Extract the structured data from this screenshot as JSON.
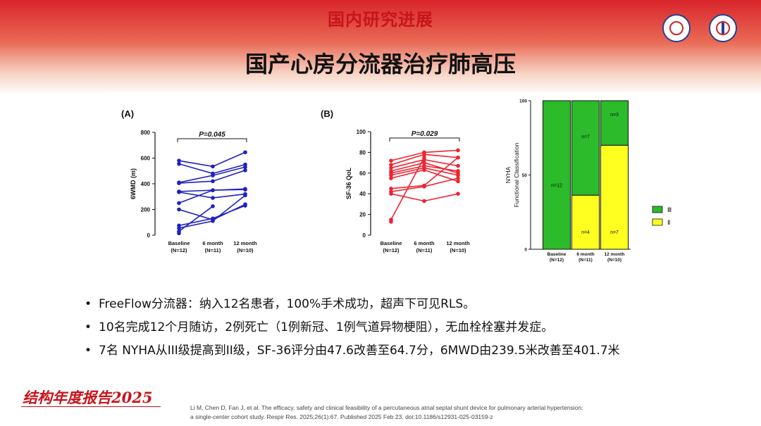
{
  "header": {
    "section_title": "国内研究进展",
    "slide_title": "国产心房分流器治疗肺高压"
  },
  "colors": {
    "accent_red": "#c8141c",
    "line_blue": "#2020c0",
    "line_red": "#ee2430",
    "nyha_III": "#2bbb2b",
    "nyha_II": "#ffff20"
  },
  "icons": [
    "hospital-logo-icon",
    "medical-logo-icon"
  ],
  "chart_data": [
    {
      "type": "line",
      "panel": "(A)",
      "ylabel": "6WMD (m)",
      "ylim": [
        0,
        800
      ],
      "yticks": [
        0,
        200,
        400,
        600,
        800
      ],
      "categories": [
        "Baseline",
        "6 month",
        "12 month"
      ],
      "category_n": [
        "(N=12)",
        "(N=11)",
        "(N=10)"
      ],
      "annotation": "P=0.045",
      "series": [
        {
          "values": [
            580,
            535,
            645
          ]
        },
        {
          "values": [
            555,
            480,
            550
          ]
        },
        {
          "values": [
            410,
            465,
            530
          ]
        },
        {
          "values": [
            405,
            420,
            505
          ]
        },
        {
          "values": [
            340,
            350,
            360
          ]
        },
        {
          "values": [
            335,
            290,
            320
          ]
        },
        {
          "values": [
            250,
            350,
            355
          ]
        },
        {
          "values": [
            200,
            120,
            240
          ]
        },
        {
          "values": [
            75,
            130,
            230
          ]
        },
        {
          "values": [
            55,
            110,
            310
          ]
        },
        {
          "values": [
            30,
            225,
            null
          ]
        },
        {
          "values": [
            15,
            null,
            null
          ]
        }
      ]
    },
    {
      "type": "line",
      "panel": "(B)",
      "ylabel": "SF-36 QoL",
      "ylim": [
        0,
        100
      ],
      "yticks": [
        0,
        20,
        40,
        60,
        80,
        100
      ],
      "categories": [
        "Baseline",
        "6 month",
        "12 month"
      ],
      "category_n": [
        "(N=12)",
        "(N=11)",
        "(N=10)"
      ],
      "annotation": "P=0.029",
      "series": [
        {
          "values": [
            72,
            80,
            82
          ]
        },
        {
          "values": [
            68,
            78,
            75
          ]
        },
        {
          "values": [
            65,
            73,
            67
          ]
        },
        {
          "values": [
            62,
            70,
            60
          ]
        },
        {
          "values": [
            60,
            67,
            62
          ]
        },
        {
          "values": [
            58,
            65,
            58
          ]
        },
        {
          "values": [
            55,
            63,
            52
          ]
        },
        {
          "values": [
            45,
            48,
            75
          ]
        },
        {
          "values": [
            42,
            47,
            55
          ]
        },
        {
          "values": [
            40,
            33,
            40
          ]
        },
        {
          "values": [
            15,
            75,
            null
          ]
        },
        {
          "values": [
            13,
            null,
            null
          ]
        }
      ]
    },
    {
      "type": "bar",
      "stacked": true,
      "ylabel": "NYHA Functional Classification",
      "ylim": [
        0,
        100
      ],
      "yticks": [
        0,
        50,
        100
      ],
      "categories": [
        "Baseline",
        "6 month",
        "12 month"
      ],
      "category_n": [
        "(N=12)",
        "(N=11)",
        "(N=10)"
      ],
      "legend_position": "right",
      "series": [
        {
          "name": "Ⅱ",
          "values": [
            0,
            36.4,
            70
          ],
          "labels": [
            "",
            "n=4",
            "n=7"
          ]
        },
        {
          "name": "Ⅲ",
          "values": [
            100,
            63.6,
            30
          ],
          "labels": [
            "n=12",
            "n=7",
            "n=3"
          ]
        }
      ]
    }
  ],
  "bullets": [
    "FreeFlow分流器：纳入12名患者，100%手术成功，超声下可见RLS。",
    "10名完成12个月随访，2例死亡（1例新冠、1例气道异物梗阻），无血栓栓塞并发症。",
    "7名 NYHA从III级提高到II级，SF-36评分由47.6改善至64.7分，6MWD由239.5米改善至401.7米"
  ],
  "bullet_marker": "•",
  "footer": {
    "brand": "结构年度报告2025",
    "reference_line1": "Li M, Chen D, Fan J, et al. The efficacy, safety and clinical feasibility of a percutaneous atrial septal shunt device for pulmonary arterial hypertension:",
    "reference_line2": "a single-center cohort study. Respir Res. 2025;26(1):67. Published 2025 Feb 23. doi:10.1186/s12931-025-03159-z"
  }
}
